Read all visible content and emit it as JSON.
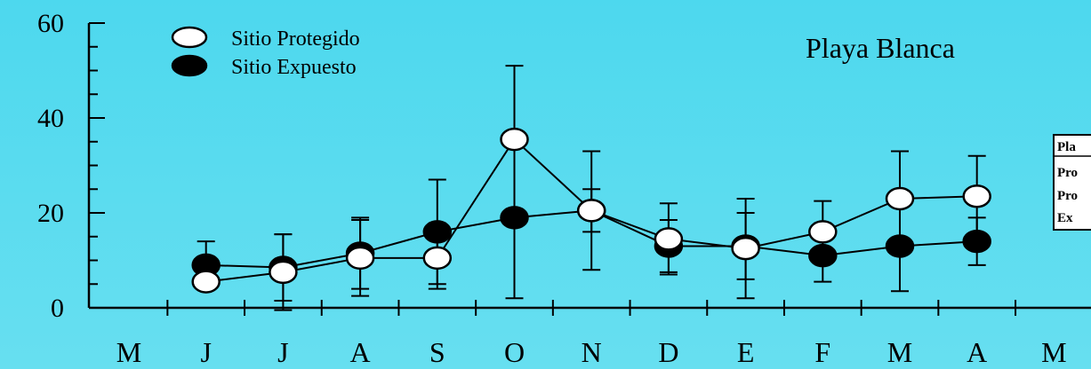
{
  "chart_data": {
    "type": "line",
    "title": "Playa Blanca",
    "xlabel": "",
    "ylabel": "",
    "categories": [
      "M",
      "J",
      "J",
      "A",
      "S",
      "O",
      "N",
      "D",
      "E",
      "F",
      "M",
      "A",
      "M"
    ],
    "ylim": [
      0,
      60
    ],
    "yticks": [
      0,
      20,
      40,
      60
    ],
    "grid": false,
    "legend": "top-left",
    "series": [
      {
        "name": "Sitio Protegido",
        "marker": "open-circle",
        "values": [
          null,
          5.5,
          7.5,
          10.5,
          10.5,
          35.5,
          20.5,
          14.5,
          12.5,
          16,
          23,
          23.5,
          null
        ],
        "errors": [
          null,
          null,
          8,
          8,
          6.5,
          15.5,
          12.5,
          7.5,
          10.5,
          6.5,
          10,
          8.5,
          null
        ]
      },
      {
        "name": "Sitio Expuesto",
        "marker": "filled-circle",
        "values": [
          null,
          9,
          8.5,
          11.5,
          16,
          19,
          20.5,
          13,
          13,
          11,
          13,
          14,
          null
        ],
        "errors": [
          null,
          5,
          7,
          7.5,
          11,
          17,
          4.5,
          5.5,
          7,
          5.5,
          9.5,
          5,
          null
        ]
      }
    ]
  },
  "inset_table": {
    "rows": [
      "Pla",
      "Pro",
      "Pro",
      "Ex"
    ]
  }
}
